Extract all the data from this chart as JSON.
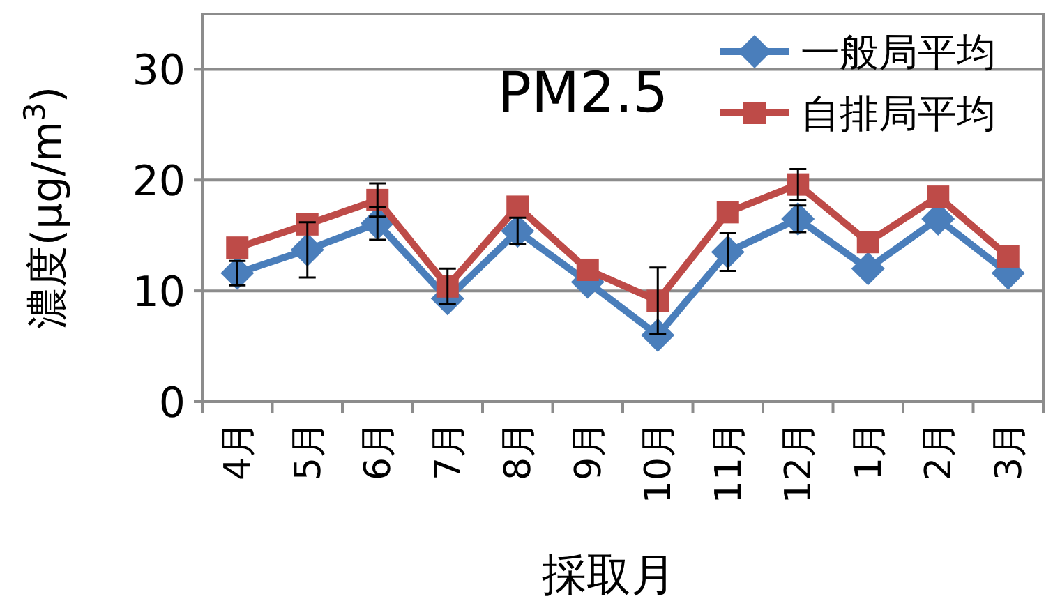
{
  "chart_data": {
    "type": "line",
    "title": "PM2.5",
    "xlabel": "採取月",
    "ylabel": "濃度(μg/m$^{3}$)",
    "categories": [
      "4月",
      "5月",
      "6月",
      "7月",
      "8月",
      "9月",
      "10月",
      "11月",
      "12月",
      "1月",
      "2月",
      "3月"
    ],
    "series": [
      {
        "name": "一般局平均",
        "color": "#4a7ebb",
        "marker": "diamond",
        "values": [
          11.6,
          13.7,
          16.1,
          9.3,
          15.4,
          10.8,
          6.0,
          13.5,
          16.5,
          12.0,
          16.5,
          11.6
        ],
        "errors": [
          1.1,
          2.5,
          1.5,
          null,
          1.2,
          null,
          null,
          1.7,
          1.2,
          null,
          null,
          null
        ]
      },
      {
        "name": "自排局平均",
        "color": "#be4b48",
        "marker": "square",
        "values": [
          13.9,
          16.0,
          18.2,
          10.4,
          17.6,
          11.9,
          9.1,
          17.1,
          19.6,
          14.4,
          18.5,
          13.1
        ],
        "errors": [
          null,
          null,
          1.5,
          1.6,
          null,
          null,
          3.0,
          null,
          1.4,
          null,
          null,
          null
        ]
      }
    ],
    "ylim": [
      0,
      35
    ],
    "yticks": [
      0,
      10,
      20,
      30
    ],
    "grid": "y",
    "legend": "top right"
  }
}
